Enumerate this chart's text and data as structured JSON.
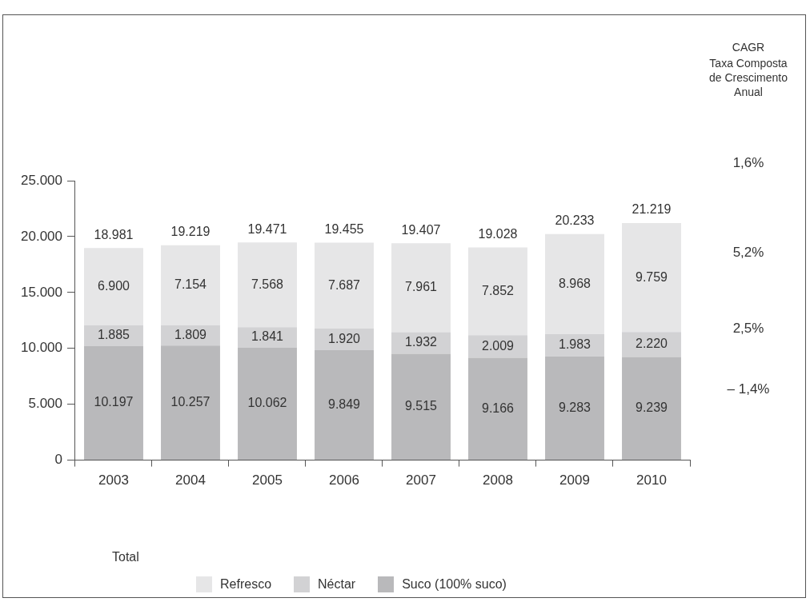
{
  "chart_data": {
    "type": "bar",
    "stacked": true,
    "categories": [
      "2003",
      "2004",
      "2005",
      "2006",
      "2007",
      "2008",
      "2009",
      "2010"
    ],
    "series": [
      {
        "name": "Suco (100% suco)",
        "color": "#b9b9bb",
        "values": [
          10197,
          10257,
          10062,
          9849,
          9515,
          9166,
          9283,
          9239
        ],
        "value_labels": [
          "10.197",
          "10.257",
          "10.062",
          "9.849",
          "9.515",
          "9.166",
          "9.283",
          "9.239"
        ]
      },
      {
        "name": "Néctar",
        "color": "#d2d2d4",
        "values": [
          1885,
          1809,
          1841,
          1920,
          1932,
          2009,
          1983,
          2220
        ],
        "value_labels": [
          "1.885",
          "1.809",
          "1.841",
          "1.920",
          "1.932",
          "2.009",
          "1.983",
          "2.220"
        ]
      },
      {
        "name": "Refresco",
        "color": "#e6e6e7",
        "values": [
          6900,
          7154,
          7568,
          7687,
          7961,
          7852,
          8968,
          9759
        ],
        "value_labels": [
          "6.900",
          "7.154",
          "7.568",
          "7.687",
          "7.961",
          "7.852",
          "8.968",
          "9.759"
        ]
      }
    ],
    "totals": [
      "18.981",
      "19.219",
      "19.471",
      "19.455",
      "19.407",
      "19.028",
      "20.233",
      "21.219"
    ],
    "ylim": [
      0,
      25000
    ],
    "yticks": [
      0,
      {
        "value": 5000,
        "label": "5.000"
      },
      {
        "value": 10000,
        "label": "10.000"
      },
      {
        "value": 15000,
        "label": "15.000"
      },
      {
        "value": 20000,
        "label": "20.000"
      },
      {
        "value": 25000,
        "label": "25.000"
      }
    ],
    "grid": false,
    "legend": "bottom",
    "annotations": [
      "CAGR",
      "Taxa Composta de Crescimento Anual",
      "1,6%",
      "5,2%",
      "2,5%",
      "– 1,4%",
      "Total"
    ]
  }
}
